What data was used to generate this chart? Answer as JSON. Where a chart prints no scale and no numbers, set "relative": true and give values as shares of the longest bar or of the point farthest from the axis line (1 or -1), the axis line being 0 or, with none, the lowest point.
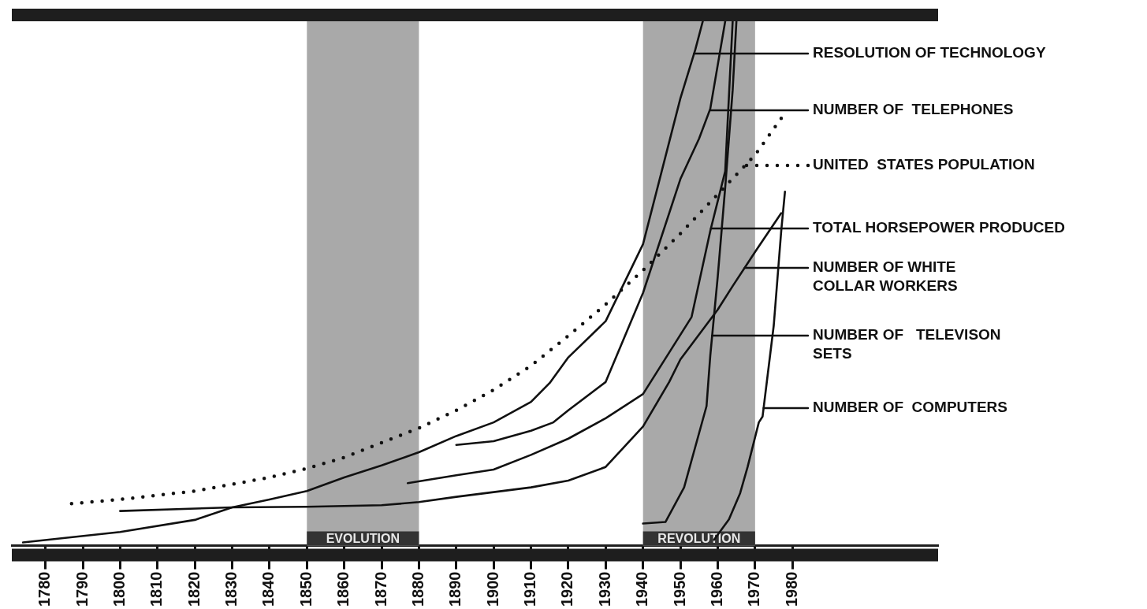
{
  "chart_data": {
    "type": "line",
    "relative": true,
    "marker": "none",
    "grid": false,
    "legend": "right",
    "tick_labels": "x",
    "xlim": [
      1771,
      2019
    ],
    "xticks": [
      1780,
      1790,
      1800,
      1810,
      1820,
      1830,
      1840,
      1850,
      1860,
      1870,
      1880,
      1890,
      1900,
      1910,
      1920,
      1930,
      1940,
      1950,
      1960,
      1970,
      1980
    ],
    "bands": [
      {
        "axis": "x",
        "from": 1850,
        "to": 1880,
        "label": "EVOLUTION",
        "color": "#a9a9a9"
      },
      {
        "axis": "x",
        "from": 1940,
        "to": 1970,
        "label": "REVOLUTION",
        "color": "#a9a9a9"
      }
    ],
    "series": [
      {
        "name": "RESOLUTION OF TECHNOLOGY",
        "color": "#111111",
        "line_style": "solid",
        "x": [
          1774,
          1800,
          1820,
          1830,
          1840,
          1850,
          1860,
          1870,
          1880,
          1890,
          1900,
          1910,
          1915,
          1920,
          1930,
          1940,
          1945,
          1950,
          1954,
          1956
        ],
        "values": [
          0.006,
          0.026,
          0.049,
          0.073,
          0.088,
          0.104,
          0.13,
          0.153,
          0.178,
          0.209,
          0.235,
          0.274,
          0.31,
          0.359,
          0.428,
          0.575,
          0.714,
          0.853,
          0.946,
          1
        ]
      },
      {
        "name": "NUMBER OF  TELEPHONES",
        "color": "#111111",
        "line_style": "solid",
        "x": [
          1890,
          1900,
          1910,
          1916,
          1920,
          1930,
          1940,
          1950,
          1955,
          1958,
          1962
        ],
        "values": [
          0.192,
          0.199,
          0.219,
          0.235,
          0.258,
          0.312,
          0.482,
          0.699,
          0.776,
          0.833,
          1
        ]
      },
      {
        "name": "UNITED  STATES POPULATION",
        "color": "#111111",
        "line_style": "dotted",
        "x": [
          1787,
          1800,
          1820,
          1840,
          1850,
          1860,
          1870,
          1880,
          1890,
          1900,
          1910,
          1920,
          1930,
          1940,
          1950,
          1960,
          1970,
          1977
        ],
        "values": [
          0.08,
          0.088,
          0.104,
          0.13,
          0.147,
          0.168,
          0.196,
          0.224,
          0.258,
          0.297,
          0.343,
          0.4,
          0.46,
          0.525,
          0.595,
          0.67,
          0.745,
          0.815
        ]
      },
      {
        "name": "TOTAL HORSEPOWER PRODUCED",
        "color": "#111111",
        "line_style": "solid",
        "x": [
          1877,
          1890,
          1900,
          1910,
          1920,
          1930,
          1940,
          1953,
          1958,
          1962,
          1964
        ],
        "values": [
          0.119,
          0.134,
          0.145,
          0.173,
          0.204,
          0.243,
          0.289,
          0.436,
          0.6,
          0.714,
          1
        ]
      },
      {
        "name": "NUMBER OF WHITE COLLAR WORKERS",
        "color": "#111111",
        "line_style": "solid",
        "x": [
          1800,
          1830,
          1850,
          1870,
          1880,
          1890,
          1900,
          1910,
          1920,
          1930,
          1940,
          1947,
          1950,
          1960,
          1964,
          1970,
          1977
        ],
        "values": [
          0.066,
          0.073,
          0.074,
          0.077,
          0.083,
          0.093,
          0.102,
          0.111,
          0.124,
          0.15,
          0.227,
          0.312,
          0.355,
          0.45,
          0.495,
          0.56,
          0.634
        ]
      },
      {
        "name": "NUMBER OF   TELEVISON SETS",
        "color": "#111111",
        "line_style": "solid",
        "x": [
          1940,
          1946,
          1951,
          1957,
          1958,
          1960,
          1962,
          1964,
          1965
        ],
        "values": [
          0.042,
          0.045,
          0.111,
          0.266,
          0.362,
          0.513,
          0.683,
          0.869,
          1
        ]
      },
      {
        "name": "NUMBER OF  COMPUTERS",
        "color": "#111111",
        "line_style": "solid",
        "x": [
          1959,
          1963,
          1966,
          1968,
          1971,
          1972,
          1975,
          1977,
          1978
        ],
        "values": [
          0.011,
          0.05,
          0.1,
          0.15,
          0.235,
          0.246,
          0.42,
          0.6,
          0.675
        ]
      }
    ]
  }
}
